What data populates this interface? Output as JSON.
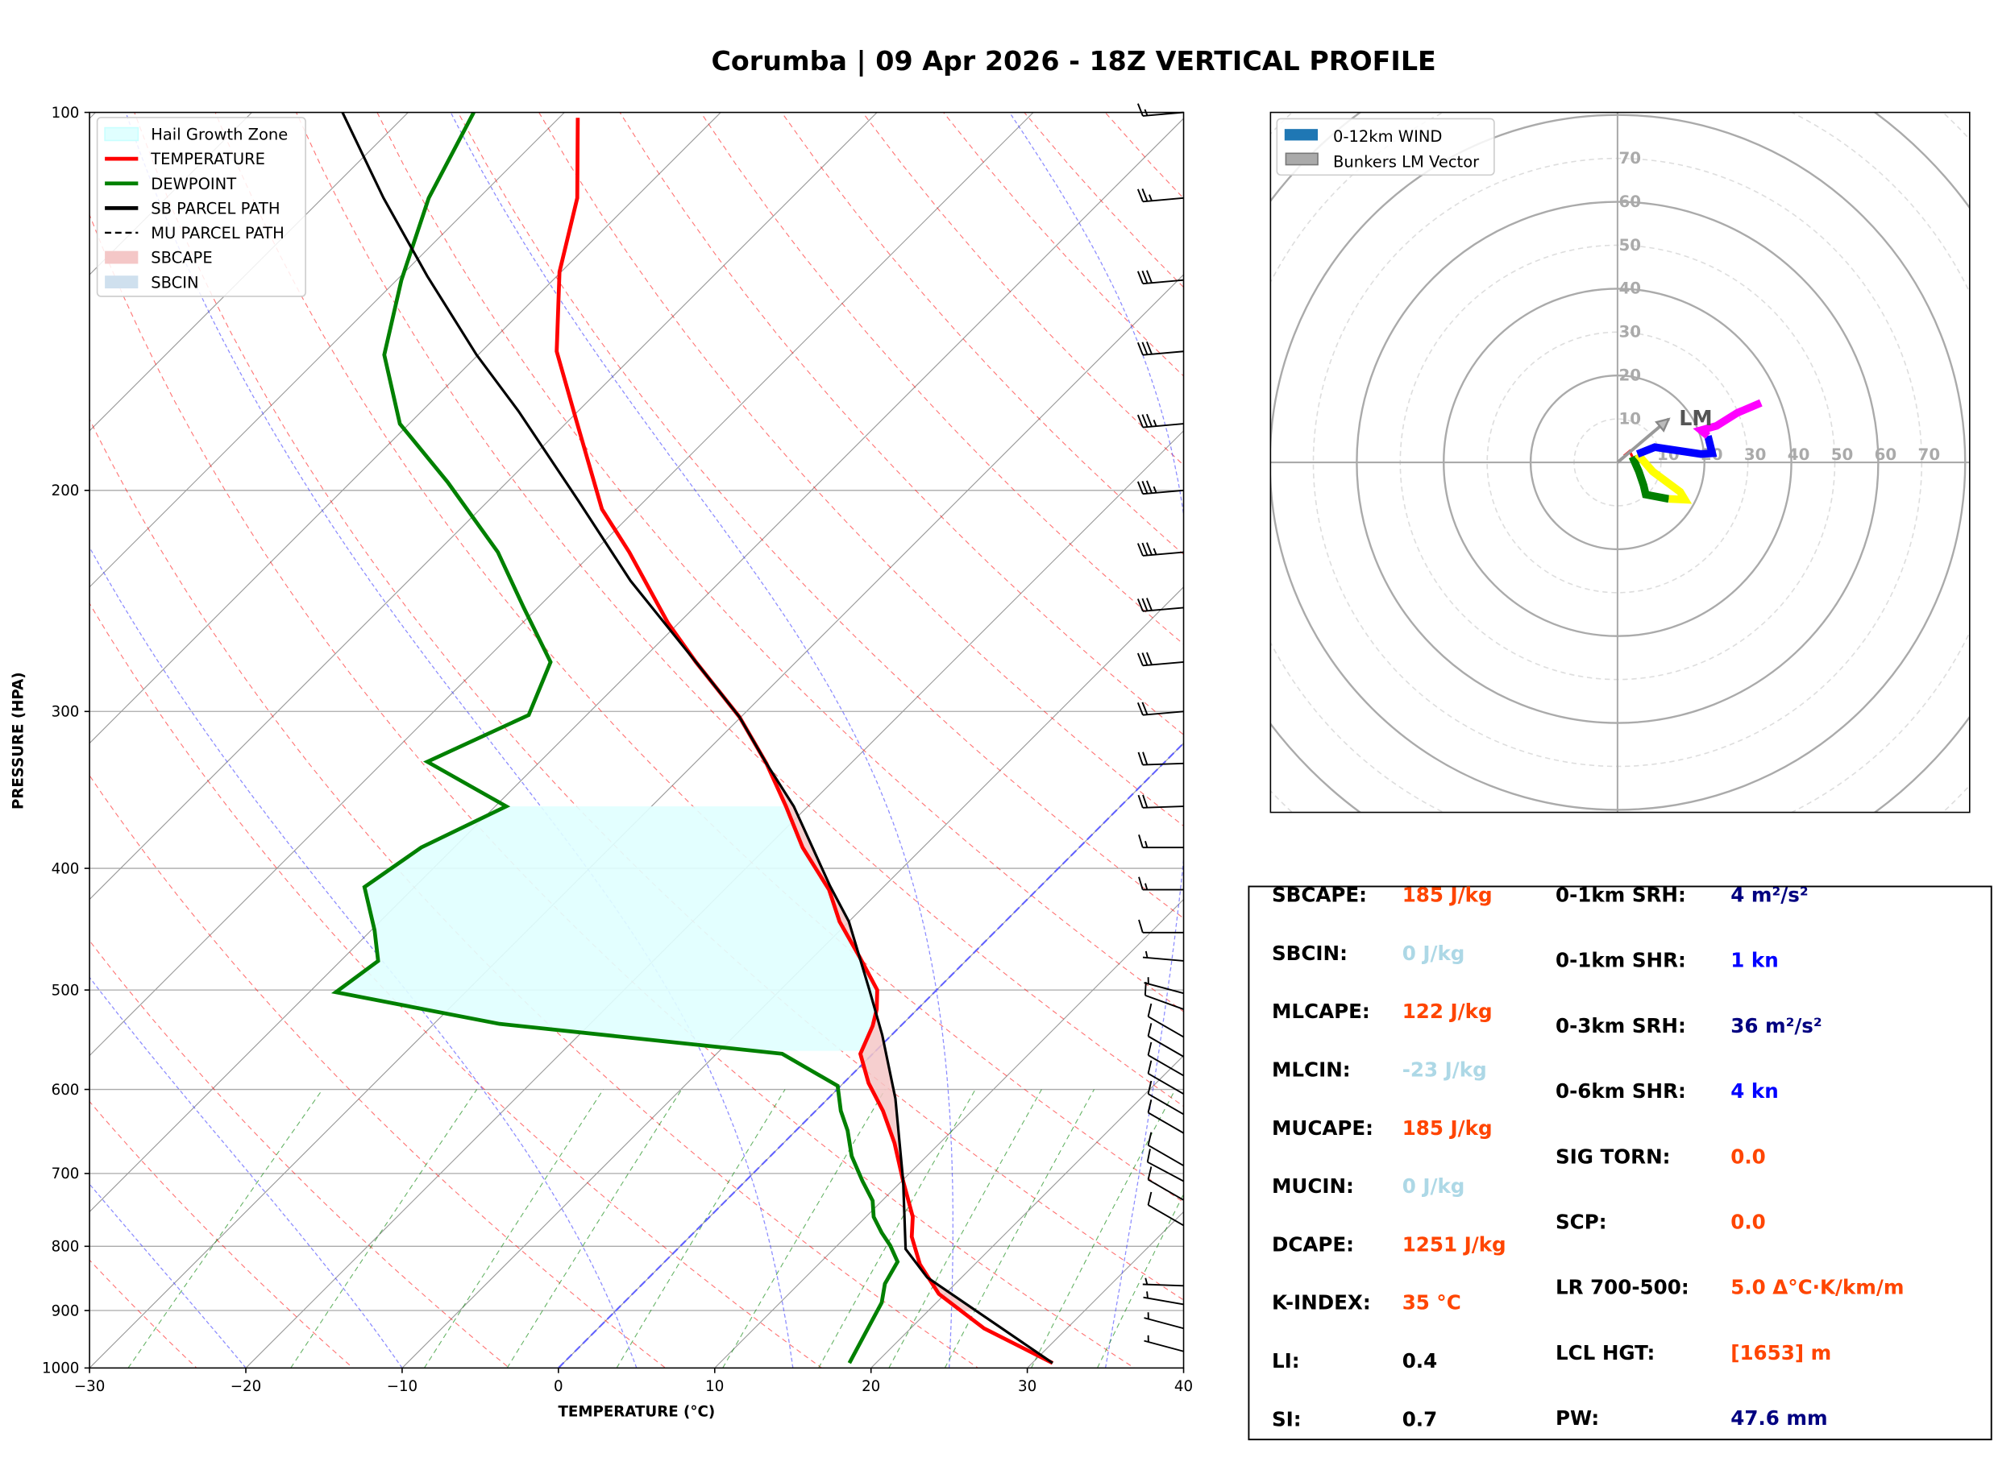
{
  "title": "Corumba | 09 Apr 2026 - 18Z VERTICAL PROFILE",
  "skewt": {
    "xlabel": "TEMPERATURE (°C)",
    "ylabel": "PRESSURE (HPA)",
    "legend": {
      "items": [
        {
          "label": "Hail Growth Zone",
          "color": "#e0ffff",
          "kind": "patch"
        },
        {
          "label": "TEMPERATURE",
          "color": "#ff0000",
          "kind": "line"
        },
        {
          "label": "DEWPOINT",
          "color": "#008000",
          "kind": "line"
        },
        {
          "label": "SB PARCEL PATH",
          "color": "#000000",
          "kind": "line"
        },
        {
          "label": "MU PARCEL PATH",
          "color": "#000000",
          "kind": "dashed"
        },
        {
          "label": "SBCAPE",
          "color": "#f4c7c7",
          "kind": "patch"
        },
        {
          "label": "SBCIN",
          "color": "#cfe0ee",
          "kind": "patch"
        }
      ]
    }
  },
  "chart_data": [
    {
      "type": "line",
      "name": "skew-T log-P",
      "xlim": [
        -30,
        40
      ],
      "ylim": [
        1000,
        100
      ],
      "yscale": "log",
      "x_ticks": [
        "−30",
        "−20",
        "−10",
        "0",
        "10",
        "20",
        "30",
        "40"
      ],
      "x_tick_values": [
        -30,
        -20,
        -10,
        0,
        10,
        20,
        30,
        40
      ],
      "y_ticks": [
        "100",
        "200",
        "300",
        "400",
        "500",
        "600",
        "700",
        "800",
        "900",
        "1000"
      ],
      "y_tick_values": [
        100,
        200,
        300,
        400,
        500,
        600,
        700,
        800,
        900,
        1000
      ],
      "temperature": [
        [
          991,
          31.3
        ],
        [
          930,
          24.7
        ],
        [
          873,
          19.6
        ],
        [
          827,
          16.5
        ],
        [
          786,
          14.2
        ],
        [
          758,
          13.0
        ],
        [
          710,
          10.1
        ],
        [
          662,
          7.1
        ],
        [
          624,
          4.3
        ],
        [
          593,
          1.6
        ],
        [
          562,
          -0.8
        ],
        [
          534,
          -1.8
        ],
        [
          518,
          -2.6
        ],
        [
          500,
          -3.8
        ],
        [
          471,
          -7.0
        ],
        [
          441,
          -10.6
        ],
        [
          416,
          -13.3
        ],
        [
          385,
          -17.7
        ],
        [
          357,
          -21.4
        ],
        [
          330,
          -25.4
        ],
        [
          303,
          -30.1
        ],
        [
          274,
          -36.4
        ],
        [
          255,
          -40.7
        ],
        [
          224,
          -47.7
        ],
        [
          207,
          -52.2
        ],
        [
          176,
          -59.5
        ],
        [
          155,
          -65.2
        ],
        [
          134,
          -70.1
        ],
        [
          117,
          -73.7
        ],
        [
          101,
          -78.8
        ]
      ],
      "dewpoint": [
        [
          991,
          18.3
        ],
        [
          887,
          16.5
        ],
        [
          857,
          15.5
        ],
        [
          823,
          14.9
        ],
        [
          799,
          13.4
        ],
        [
          780,
          12.0
        ],
        [
          758,
          10.5
        ],
        [
          736,
          9.4
        ],
        [
          710,
          7.5
        ],
        [
          678,
          5.2
        ],
        [
          647,
          3.3
        ],
        [
          624,
          1.6
        ],
        [
          596,
          -0.2
        ],
        [
          562,
          -5.8
        ],
        [
          532,
          -25.8
        ],
        [
          502,
          -38.3
        ],
        [
          474,
          -37.6
        ],
        [
          448,
          -39.8
        ],
        [
          414,
          -43.2
        ],
        [
          385,
          -42.1
        ],
        [
          357,
          -39.3
        ],
        [
          329,
          -47.2
        ],
        [
          302,
          -43.7
        ],
        [
          274,
          -45.7
        ],
        [
          248,
          -50.9
        ],
        [
          224,
          -56.1
        ],
        [
          197,
          -63.8
        ],
        [
          177,
          -70.6
        ],
        [
          156,
          -76.0
        ],
        [
          136,
          -79.7
        ],
        [
          117,
          -83.2
        ],
        [
          100,
          -85.8
        ]
      ],
      "sb_parcel": [
        [
          991,
          31.3
        ],
        [
          847,
          17.8
        ],
        [
          804,
          14.6
        ],
        [
          710,
          10.1
        ],
        [
          610,
          4.3
        ],
        [
          543,
          -0.6
        ],
        [
          500,
          -4.3
        ],
        [
          441,
          -10.0
        ],
        [
          413,
          -13.5
        ],
        [
          357,
          -20.9
        ],
        [
          330,
          -25.4
        ],
        [
          303,
          -30.1
        ],
        [
          274,
          -36.4
        ],
        [
          236,
          -45.8
        ],
        [
          204,
          -54.2
        ],
        [
          173,
          -63.8
        ],
        [
          156,
          -70.1
        ],
        [
          135,
          -78.3
        ],
        [
          117,
          -86.1
        ],
        [
          100,
          -94.2
        ]
      ],
      "hail_growth_zone_hpa": [
        357,
        560
      ],
      "wind_barbs": [
        [
          100,
          265,
          15
        ],
        [
          117,
          265,
          25
        ],
        [
          136,
          265,
          30
        ],
        [
          155,
          265,
          30
        ],
        [
          177,
          265,
          35
        ],
        [
          200,
          265,
          35
        ],
        [
          224,
          265,
          35
        ],
        [
          248,
          265,
          30
        ],
        [
          274,
          265,
          30
        ],
        [
          300,
          265,
          20
        ],
        [
          330,
          268,
          20
        ],
        [
          357,
          268,
          20
        ],
        [
          385,
          270,
          15
        ],
        [
          416,
          270,
          15
        ],
        [
          450,
          270,
          10
        ],
        [
          474,
          275,
          5
        ],
        [
          503,
          285,
          5
        ],
        [
          518,
          290,
          10
        ],
        [
          545,
          300,
          10
        ],
        [
          565,
          300,
          10
        ],
        [
          585,
          300,
          10
        ],
        [
          605,
          300,
          10
        ],
        [
          628,
          300,
          10
        ],
        [
          650,
          300,
          10
        ],
        [
          690,
          300,
          10
        ],
        [
          710,
          298,
          10
        ],
        [
          735,
          300,
          10
        ],
        [
          770,
          300,
          10
        ],
        [
          860,
          272,
          5
        ],
        [
          890,
          280,
          5
        ],
        [
          930,
          285,
          5
        ],
        [
          970,
          285,
          5
        ]
      ]
    },
    {
      "type": "line",
      "name": "hodograph",
      "units": "kn",
      "ring_labels": [
        "10",
        "20",
        "30",
        "40",
        "50",
        "60",
        "70"
      ],
      "legend": [
        {
          "label": "0-12km WIND",
          "color": "#1f77b4"
        },
        {
          "label": "Bunkers LM Vector",
          "color": "#aaaaaa"
        }
      ],
      "lm_label": "LM",
      "bunkers_lm": [
        11.8,
        10.0
      ],
      "segments": [
        {
          "color": "#ff0000",
          "uv": [
            [
              1.5,
              1.5
            ],
            [
              2.8,
              2.6
            ],
            [
              3.4,
              1.3
            ]
          ]
        },
        {
          "color": "#008000",
          "uv": [
            [
              3.4,
              1.3
            ],
            [
              4.9,
              -2.1
            ],
            [
              6.0,
              -5.3
            ],
            [
              6.5,
              -7.4
            ],
            [
              11.8,
              -8.4
            ]
          ]
        },
        {
          "color": "#ffff00",
          "uv": [
            [
              11.8,
              -8.4
            ],
            [
              15.5,
              -8.6
            ],
            [
              14.4,
              -6.8
            ],
            [
              8.1,
              -2.1
            ],
            [
              4.6,
              1.9
            ]
          ]
        },
        {
          "color": "#0000ff",
          "uv": [
            [
              4.6,
              1.9
            ],
            [
              6.3,
              2.6
            ],
            [
              8.6,
              3.5
            ],
            [
              19.2,
              1.9
            ],
            [
              21.8,
              2.1
            ],
            [
              20.8,
              6.1
            ]
          ]
        },
        {
          "color": "#ff00ff",
          "uv": [
            [
              20.8,
              6.1
            ],
            [
              19.2,
              7.4
            ],
            [
              22.8,
              8.4
            ],
            [
              27.6,
              11.4
            ],
            [
              33.0,
              13.7
            ]
          ]
        }
      ]
    }
  ],
  "stats": {
    "left": [
      {
        "label": "SBCAPE:",
        "value": "185 J/kg",
        "color": "#ff4500"
      },
      {
        "label": "SBCIN:",
        "value": "0 J/kg",
        "color": "#add8e6"
      },
      {
        "label": "MLCAPE:",
        "value": "122 J/kg",
        "color": "#ff4500"
      },
      {
        "label": "MLCIN:",
        "value": "-23 J/kg",
        "color": "#add8e6"
      },
      {
        "label": "MUCAPE:",
        "value": "185 J/kg",
        "color": "#ff4500"
      },
      {
        "label": "MUCIN:",
        "value": "0 J/kg",
        "color": "#add8e6"
      },
      {
        "label": "DCAPE:",
        "value": "1251 J/kg",
        "color": "#ff4500"
      },
      {
        "label": "K-INDEX:",
        "value": "35 °C",
        "color": "#ff4500"
      },
      {
        "label": "LI:",
        "value": "0.4",
        "color": "#000000"
      },
      {
        "label": "SI:",
        "value": "0.7",
        "color": "#000000"
      }
    ],
    "right": [
      {
        "label": "0-1km SRH:",
        "value": "4 m²/s²",
        "color": "#000080"
      },
      {
        "label": "0-1km SHR:",
        "value": "1 kn",
        "color": "#0000ff"
      },
      {
        "label": "0-3km SRH:",
        "value": "36 m²/s²",
        "color": "#000080"
      },
      {
        "label": "0-6km SHR:",
        "value": "4 kn",
        "color": "#0000ff"
      },
      {
        "label": "SIG TORN:",
        "value": "0.0",
        "color": "#ff4500"
      },
      {
        "label": "SCP:",
        "value": "0.0",
        "color": "#ff4500"
      },
      {
        "label": "LR 700-500:",
        "value": "5.0 Δ°C·K/km/m",
        "color": "#ff4500"
      },
      {
        "label": "LCL HGT:",
        "value": "[1653] m",
        "color": "#ff4500"
      },
      {
        "label": "PW:",
        "value": "47.6 mm",
        "color": "#000080"
      }
    ]
  }
}
